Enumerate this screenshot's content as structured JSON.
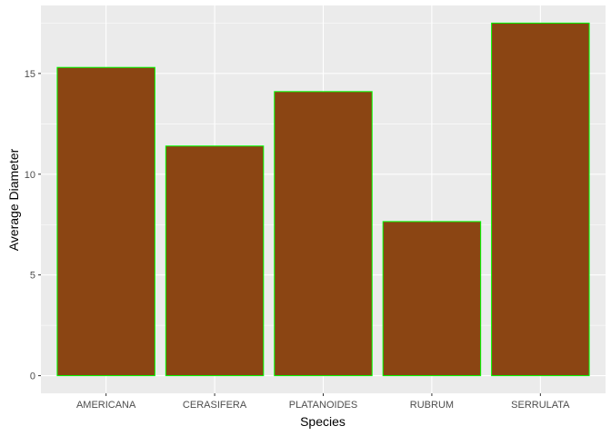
{
  "chart_data": {
    "type": "bar",
    "title": "",
    "xlabel": "Species",
    "ylabel": "Average Diameter",
    "categories": [
      "AMERICANA",
      "CERASIFERA",
      "PLATANOIDES",
      "RUBRUM",
      "SERRULATA"
    ],
    "values": [
      15.3,
      11.4,
      14.1,
      7.65,
      17.5
    ],
    "ylim": [
      -0.875,
      18.375
    ],
    "yticks": [
      0,
      5,
      10,
      15
    ],
    "ytick_labels": [
      "0",
      "5",
      "10",
      "15"
    ],
    "grid": true,
    "legend": "none",
    "colors": {
      "bar_fill": "#8B4513",
      "bar_outline": "#00FF00",
      "panel_background": "#EBEBEB",
      "grid_major": "#FFFFFF",
      "tick_text": "#4D4D4D",
      "tick_mark": "#333333"
    }
  }
}
